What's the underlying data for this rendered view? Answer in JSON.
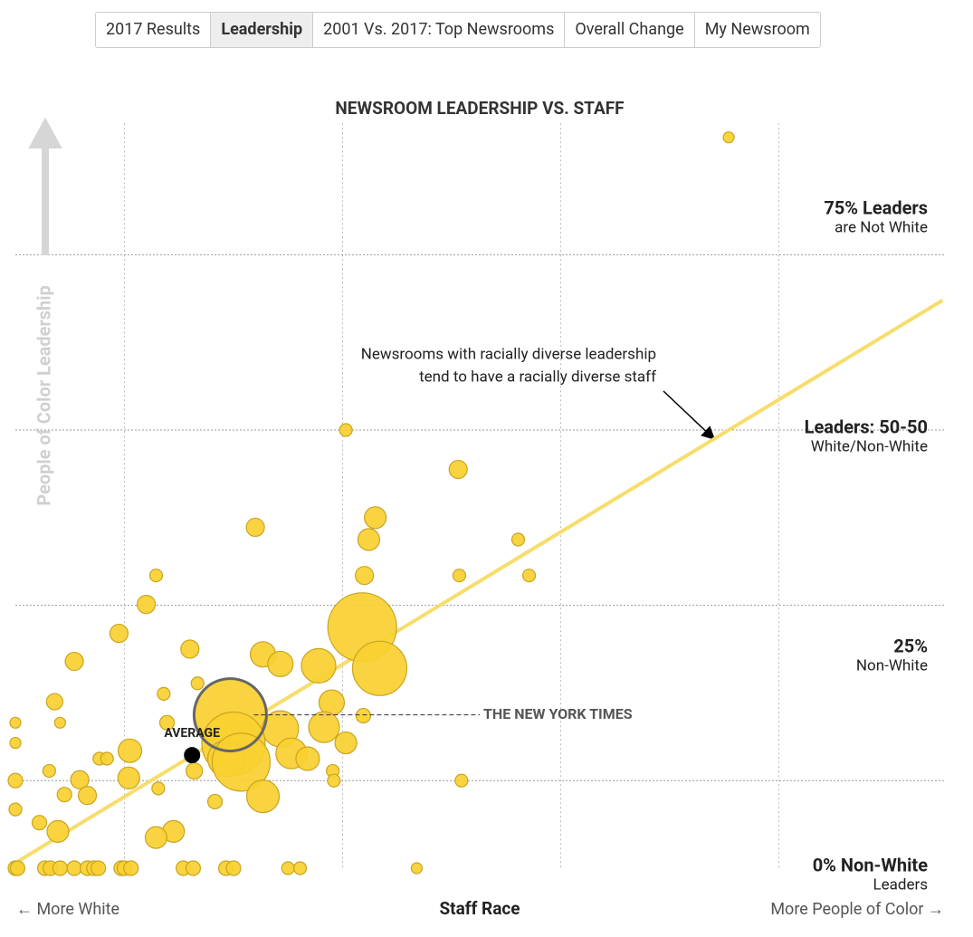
{
  "tabs": [
    "2017 Results",
    "Leadership",
    "2001 Vs. 2017: Top Newsrooms",
    "Overall Change",
    "My Newsroom"
  ],
  "active_tab": 1,
  "chart_data": {
    "type": "scatter",
    "title": "NEWSROOM LEADERSHIP VS. STAFF",
    "x_label": "Staff Race",
    "x_label_left": "← More White",
    "x_label_right": "More People of Color →",
    "y_label": "People of Color Leadership",
    "color": "#f9d030",
    "xlim": [
      0,
      85
    ],
    "ylim": [
      0,
      85
    ],
    "xgrid": [
      10,
      30,
      50,
      70
    ],
    "ygrid": [
      10,
      30,
      50,
      70
    ],
    "y_labels": [
      {
        "value": 75,
        "title": "75% Leaders",
        "subtitle": "are Not White"
      },
      {
        "value": 50,
        "title": "Leaders: 50-50",
        "subtitle": "White/Non-White"
      },
      {
        "value": 25,
        "title": "25%",
        "subtitle": "Non-White"
      },
      {
        "value": 0,
        "title": "0% Non-White",
        "subtitle": "Leaders"
      }
    ],
    "x": [
      65.4,
      30.3,
      40.6,
      33.0,
      22.0,
      32.4,
      46.1,
      32.0,
      40.7,
      47.1,
      12.9,
      12.0,
      9.5,
      16.0,
      22.7,
      24.3,
      27.8,
      31.8,
      33.4,
      5.4,
      16.7,
      13.6,
      3.6,
      29.0,
      19.7,
      31.9,
      0,
      4.1,
      13.9,
      28.3,
      24.3,
      20.0,
      30.3,
      0,
      10.5,
      7.7,
      8.4,
      25.3,
      26.8,
      19.3,
      20.7,
      3.1,
      16.4,
      29.1,
      10.4,
      5.9,
      29.2,
      40.9,
      0,
      13.1,
      4.5,
      6.6,
      22.7,
      18.3,
      0,
      2.2,
      3.9,
      14.5,
      12.9,
      0,
      0.2,
      2.7,
      3.2,
      4.1,
      5.4,
      6.6,
      7.2,
      7.6,
      9.7,
      10.0,
      10.6,
      15.4,
      16.3,
      19.3,
      20.0,
      25.0,
      26.1,
      36.8
    ],
    "values": [
      83.4,
      50.0,
      45.5,
      40.0,
      38.9,
      37.5,
      37.5,
      33.4,
      33.4,
      33.4,
      33.4,
      30.1,
      26.8,
      25.0,
      24.4,
      23.3,
      23.1,
      27.5,
      22.8,
      23.6,
      21.1,
      19.9,
      19.0,
      18.9,
      17.5,
      17.4,
      16.6,
      16.6,
      16.6,
      16.1,
      15.9,
      14.2,
      14.3,
      14.3,
      13.4,
      12.5,
      12.5,
      13.1,
      12.5,
      12.5,
      12.1,
      11.1,
      11.1,
      11.1,
      10.3,
      10.1,
      10.0,
      10.0,
      10.0,
      9.1,
      8.4,
      8.3,
      8.2,
      7.6,
      6.7,
      5.2,
      4.2,
      4.2,
      3.5,
      0,
      0,
      0,
      0,
      0,
      0,
      0,
      0,
      0,
      0,
      0,
      0,
      0,
      0,
      0,
      0,
      0,
      0,
      0
    ],
    "sizes": [
      6,
      7,
      10,
      12,
      10,
      12,
      7,
      10,
      7,
      7,
      7,
      10,
      10,
      10,
      14,
      14,
      19,
      38,
      30,
      10,
      7,
      7,
      9,
      14,
      40,
      8,
      6,
      6,
      8,
      17,
      20,
      35,
      12,
      6,
      13,
      7,
      7,
      17,
      13,
      20,
      32,
      7,
      9,
      7,
      12,
      10,
      7,
      7,
      8,
      7,
      8,
      10,
      18,
      8,
      7,
      8,
      12,
      12,
      12,
      8,
      8,
      8,
      8,
      8,
      8,
      8,
      8,
      8,
      8,
      8,
      8,
      8,
      8,
      8,
      8,
      7,
      7,
      6
    ],
    "trend": {
      "x": [
        0,
        85
      ],
      "y": [
        0.6,
        64.8
      ]
    },
    "trend_note": [
      "Newsrooms with racially diverse leadership",
      "tend to have a racially diverse staff"
    ],
    "annotations": [
      {
        "text": "THE NEW YORK TIMES",
        "x": 19.7,
        "y": 17.5
      },
      {
        "text": "AVERAGE",
        "x": 16.2,
        "y": 12.9
      }
    ]
  }
}
